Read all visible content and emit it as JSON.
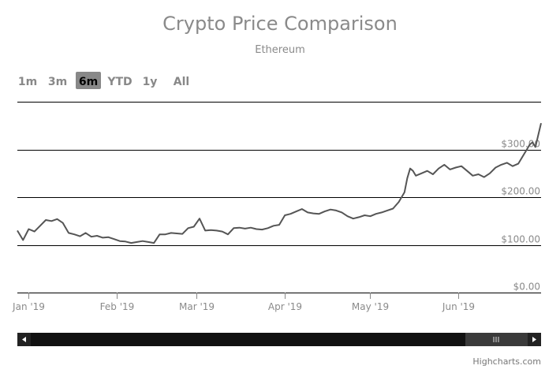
{
  "title": "Crypto Price Comparison",
  "subtitle": "Ethereum",
  "range_selector": {
    "buttons": [
      "1m",
      "3m",
      "6m",
      "YTD",
      "1y",
      "All"
    ],
    "selected": "6m"
  },
  "credits": "Highcharts.com",
  "colors": {
    "series": "#555555",
    "grid": "#000000",
    "text_muted": "#8a8a8a",
    "scrollbar_track": "#111111",
    "scrollbar_thumb": "#3a3a3a"
  },
  "scrollbar": {
    "left_arrow_icon": "triangle-left-icon",
    "right_arrow_icon": "triangle-right-icon",
    "grip_icon": "grip-lines-icon"
  },
  "chart_data": {
    "type": "line",
    "title": "Crypto Price Comparison",
    "subtitle": "Ethereum",
    "x_type": "datetime",
    "xlim": [
      "2018-12-28",
      "2019-06-30"
    ],
    "ylim": [
      0,
      400
    ],
    "y_ticks": [
      0,
      100,
      200,
      300,
      400
    ],
    "y_tick_labels": [
      "$0.00",
      "$100.00",
      "$200.00",
      "$300.00",
      ""
    ],
    "x_ticks": [
      "2019-01-01",
      "2019-02-01",
      "2019-03-01",
      "2019-04-01",
      "2019-05-01",
      "2019-06-01"
    ],
    "x_tick_labels": [
      "Jan '19",
      "Feb '19",
      "Mar '19",
      "Apr '19",
      "May '19",
      "Jun '19"
    ],
    "grid": true,
    "legend": false,
    "series": [
      {
        "x": [
          "2018-12-28",
          "2018-12-30",
          "2019-01-01",
          "2019-01-03",
          "2019-01-05",
          "2019-01-07",
          "2019-01-09",
          "2019-01-11",
          "2019-01-13",
          "2019-01-15",
          "2019-01-17",
          "2019-01-19",
          "2019-01-21",
          "2019-01-23",
          "2019-01-25",
          "2019-01-27",
          "2019-01-29",
          "2019-01-31",
          "2019-02-02",
          "2019-02-04",
          "2019-02-06",
          "2019-02-08",
          "2019-02-10",
          "2019-02-12",
          "2019-02-14",
          "2019-02-16",
          "2019-02-18",
          "2019-02-20",
          "2019-02-22",
          "2019-02-24",
          "2019-02-26",
          "2019-02-28",
          "2019-03-02",
          "2019-03-04",
          "2019-03-06",
          "2019-03-08",
          "2019-03-10",
          "2019-03-12",
          "2019-03-14",
          "2019-03-16",
          "2019-03-18",
          "2019-03-20",
          "2019-03-22",
          "2019-03-24",
          "2019-03-26",
          "2019-03-28",
          "2019-03-30",
          "2019-04-01",
          "2019-04-03",
          "2019-04-05",
          "2019-04-07",
          "2019-04-09",
          "2019-04-11",
          "2019-04-13",
          "2019-04-15",
          "2019-04-17",
          "2019-04-19",
          "2019-04-21",
          "2019-04-23",
          "2019-04-25",
          "2019-04-27",
          "2019-04-29",
          "2019-05-01",
          "2019-05-03",
          "2019-05-05",
          "2019-05-07",
          "2019-05-09",
          "2019-05-11",
          "2019-05-13",
          "2019-05-14",
          "2019-05-15",
          "2019-05-16",
          "2019-05-17",
          "2019-05-19",
          "2019-05-21",
          "2019-05-23",
          "2019-05-25",
          "2019-05-27",
          "2019-05-29",
          "2019-05-31",
          "2019-06-02",
          "2019-06-04",
          "2019-06-06",
          "2019-06-08",
          "2019-06-10",
          "2019-06-12",
          "2019-06-14",
          "2019-06-16",
          "2019-06-18",
          "2019-06-20",
          "2019-06-22",
          "2019-06-24",
          "2019-06-25",
          "2019-06-26",
          "2019-06-27",
          "2019-06-28",
          "2019-06-29",
          "2019-06-30"
        ],
        "y": [
          130,
          110,
          133,
          128,
          140,
          152,
          150,
          154,
          146,
          125,
          122,
          118,
          125,
          117,
          119,
          115,
          116,
          112,
          108,
          107,
          104,
          106,
          108,
          106,
          104,
          122,
          122,
          125,
          124,
          123,
          135,
          138,
          155,
          130,
          131,
          130,
          128,
          122,
          135,
          136,
          134,
          136,
          133,
          132,
          135,
          140,
          142,
          162,
          165,
          170,
          175,
          168,
          166,
          165,
          170,
          174,
          172,
          168,
          160,
          155,
          158,
          162,
          160,
          165,
          168,
          172,
          176,
          190,
          210,
          240,
          260,
          255,
          245,
          250,
          255,
          248,
          260,
          268,
          258,
          262,
          265,
          255,
          245,
          248,
          242,
          250,
          262,
          268,
          272,
          265,
          270,
          290,
          300,
          310,
          315,
          305,
          330,
          355
        ]
      }
    ]
  }
}
